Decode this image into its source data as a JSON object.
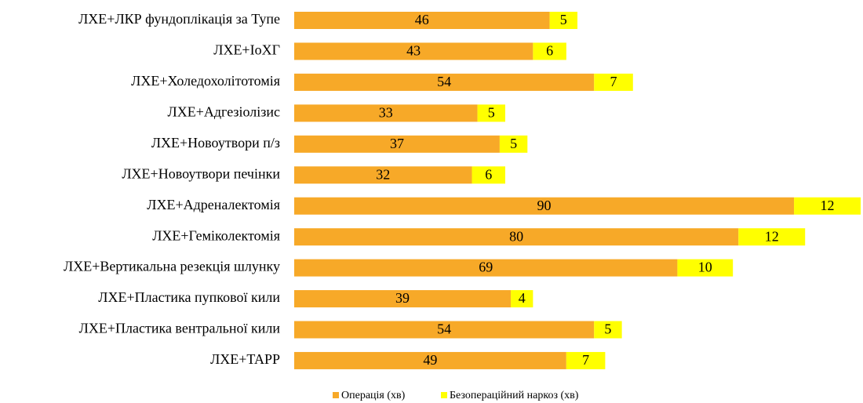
{
  "chart_data": {
    "type": "bar",
    "orientation": "horizontal",
    "stacked": true,
    "categories": [
      "ЛХЕ+ЛКР фундоплікація за Тупе",
      "ЛХЕ+IoXГ",
      "ЛХЕ+Холедохолітотомія",
      "ЛХЕ+Адгезіолізис",
      "ЛХЕ+Новоутвори п/з",
      "ЛХЕ+Новоутвори печінки",
      "ЛХЕ+Адреналектомія",
      "ЛХЕ+Геміколектомія",
      "ЛХЕ+Вертикальна резекція шлунку",
      "ЛХЕ+Пластика пупкової кили",
      "ЛХЕ+Пластика вентральної кили",
      "ЛХЕ+TAPP"
    ],
    "series": [
      {
        "name": "Операція (хв)",
        "color": "#f7a928",
        "values": [
          46,
          43,
          54,
          33,
          37,
          32,
          90,
          80,
          69,
          39,
          54,
          49
        ]
      },
      {
        "name": "Безопераційний наркоз (хв)",
        "color": "#ffff00",
        "values": [
          5,
          6,
          7,
          5,
          5,
          6,
          12,
          12,
          10,
          4,
          5,
          7
        ]
      }
    ],
    "legend": "bottom"
  }
}
